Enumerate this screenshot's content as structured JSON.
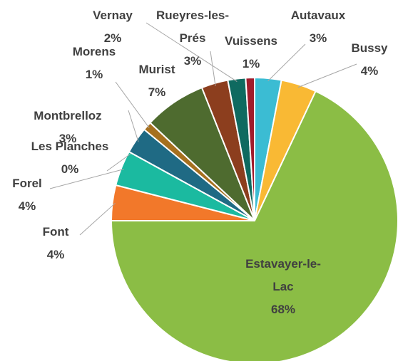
{
  "chart_data": {
    "type": "pie",
    "categories": [
      "Autavaux",
      "Bussy",
      "Estavayer-le-Lac",
      "Font",
      "Forel",
      "Les Planches",
      "Montbrelloz",
      "Morens",
      "Murist",
      "Rueyres-les-Prés",
      "Vernay",
      "Vuissens"
    ],
    "values": [
      3,
      4,
      68,
      4,
      4,
      0,
      3,
      1,
      7,
      3,
      2,
      1
    ],
    "value_labels": [
      "3%",
      "4%",
      "68%",
      "4%",
      "4%",
      "0%",
      "3%",
      "1%",
      "7%",
      "3%",
      "2%",
      "1%"
    ],
    "colors": [
      "#3bbcd3",
      "#f9b934",
      "#8bbd45",
      "#f2782a",
      "#1bbaa0",
      "#2a7ab0",
      "#1f6a84",
      "#a6701f",
      "#4e6b2f",
      "#8c3e1e",
      "#0f6a60",
      "#a01c2c"
    ]
  }
}
